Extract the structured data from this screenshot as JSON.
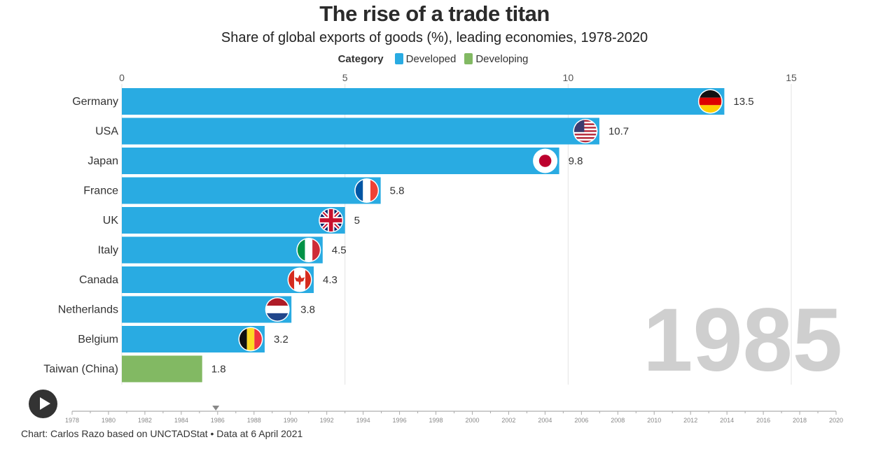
{
  "header": {
    "title": "The rise of a trade titan",
    "subtitle": "Share of global exports of goods (%), leading economies, 1978-2020"
  },
  "legend": {
    "title": "Category",
    "items": [
      {
        "label": "Developed",
        "color": "#29abe2"
      },
      {
        "label": "Developing",
        "color": "#82b963"
      }
    ]
  },
  "chart_data": {
    "type": "bar",
    "orientation": "horizontal",
    "xlim": [
      0,
      15
    ],
    "x_ticks": [
      "0",
      "5",
      "10",
      "15"
    ],
    "grid": true,
    "current_year": "1985",
    "categories": [
      "Germany",
      "USA",
      "Japan",
      "France",
      "UK",
      "Italy",
      "Canada",
      "Netherlands",
      "Belgium",
      "Taiwan (China)"
    ],
    "values": [
      13.5,
      10.7,
      9.8,
      5.8,
      5,
      4.5,
      4.3,
      3.8,
      3.2,
      1.8
    ],
    "value_labels": [
      "13.5",
      "10.7",
      "9.8",
      "5.8",
      "5",
      "4.5",
      "4.3",
      "3.8",
      "3.2",
      "1.8"
    ],
    "category_type": [
      "Developed",
      "Developed",
      "Developed",
      "Developed",
      "Developed",
      "Developed",
      "Developed",
      "Developed",
      "Developed",
      "Developing"
    ],
    "flags": [
      "germany-flag",
      "usa-flag",
      "japan-flag",
      "france-flag",
      "uk-flag",
      "italy-flag",
      "canada-flag",
      "netherlands-flag",
      "belgium-flag",
      null
    ]
  },
  "timeline": {
    "years": [
      "1978",
      "1980",
      "1982",
      "1984",
      "1986",
      "1988",
      "1990",
      "1992",
      "1994",
      "1996",
      "1998",
      "2000",
      "2002",
      "2004",
      "2006",
      "2008",
      "2010",
      "2012",
      "2014",
      "2016",
      "2018",
      "2020"
    ],
    "range": [
      1978,
      2020
    ],
    "current": 1985.9,
    "play_icon": "play-icon"
  },
  "footer": {
    "credit": "Chart: Carlos Razo based on UNCTADStat • Data at 6 April 2021"
  }
}
